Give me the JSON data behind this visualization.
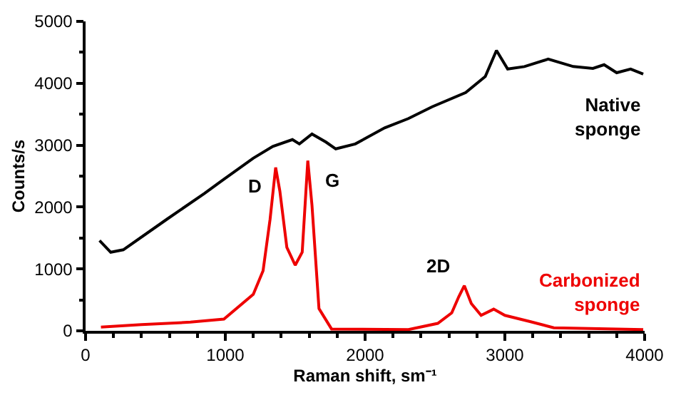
{
  "chart_data": {
    "type": "line",
    "xlabel": "Raman shift, sm⁻¹",
    "ylabel": "Counts/s",
    "xlim": [
      0,
      4000
    ],
    "xticks": [
      0,
      1000,
      2000,
      3000,
      4000
    ],
    "ylim": [
      0,
      5000
    ],
    "yticks": [
      0,
      1000,
      2000,
      3000,
      4000,
      5000
    ],
    "legend": false,
    "marker": "none",
    "line_style": "solid",
    "series": [
      {
        "name": "Native sponge",
        "color": "#000000",
        "x": [
          100,
          180,
          270,
          580,
          850,
          990,
          1200,
          1340,
          1480,
          1530,
          1620,
          1720,
          1790,
          1930,
          2140,
          2310,
          2480,
          2720,
          2860,
          2940,
          3020,
          3140,
          3310,
          3490,
          3630,
          3710,
          3800,
          3900,
          3990
        ],
        "values": [
          1460,
          1270,
          1310,
          1800,
          2220,
          2450,
          2790,
          2980,
          3090,
          3020,
          3180,
          3050,
          2940,
          3020,
          3280,
          3430,
          3620,
          3850,
          4110,
          4530,
          4230,
          4270,
          4390,
          4270,
          4240,
          4300,
          4170,
          4230,
          4150
        ]
      },
      {
        "name": "Carbonized sponge",
        "color": "#ee0000",
        "x": [
          110,
          400,
          750,
          990,
          1200,
          1270,
          1320,
          1360,
          1390,
          1440,
          1500,
          1550,
          1590,
          1620,
          1670,
          1760,
          2310,
          2520,
          2620,
          2670,
          2710,
          2760,
          2830,
          2920,
          3000,
          3180,
          3350,
          3990
        ],
        "values": [
          60,
          100,
          140,
          190,
          590,
          970,
          1800,
          2640,
          2260,
          1350,
          1060,
          1270,
          2750,
          2030,
          360,
          30,
          20,
          120,
          290,
          550,
          730,
          440,
          250,
          350,
          250,
          150,
          50,
          20
        ]
      }
    ],
    "annotations": [
      {
        "text": "D",
        "x": 1360,
        "y": 2640
      },
      {
        "text": "G",
        "x": 1590,
        "y": 2750
      },
      {
        "text": "2D",
        "x": 2710,
        "y": 730
      }
    ]
  }
}
